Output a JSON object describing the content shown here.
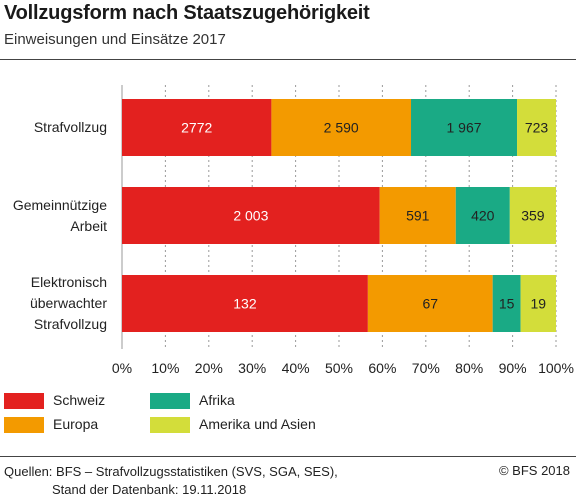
{
  "title": "Vollzugsform nach Staatszugehörigkeit",
  "subtitle": "Einweisungen und Einsätze 2017",
  "source_line1": "Quellen: BFS – Strafvollzugsstatistiken (SVS, SGA, SES),",
  "source_line2": "Stand der Datenbank: 19.11.2018",
  "copyright": "© BFS 2018",
  "chart_data": {
    "type": "bar",
    "orientation": "horizontal",
    "stacked": "percent",
    "categories": [
      "Strafvollzug",
      "Gemeinnützige Arbeit",
      "Elektronisch überwachter Strafvollzug"
    ],
    "category_lines": [
      [
        "Strafvollzug"
      ],
      [
        "Gemeinnützige",
        "Arbeit"
      ],
      [
        "Elektronisch",
        "überwachter",
        "Strafvollzug"
      ]
    ],
    "series": [
      {
        "name": "Schweiz",
        "color": "#e3211f",
        "values": [
          2772,
          2003,
          132
        ],
        "labels": [
          "2772",
          "2 003",
          "132"
        ]
      },
      {
        "name": "Europa",
        "color": "#f39a00",
        "values": [
          2590,
          591,
          67
        ],
        "labels": [
          "2 590",
          "591",
          "67"
        ]
      },
      {
        "name": "Afrika",
        "color": "#1aaa85",
        "values": [
          1967,
          420,
          15
        ],
        "labels": [
          "1 967",
          "420",
          "15"
        ]
      },
      {
        "name": "Amerika und Asien",
        "color": "#d3dd3a",
        "values": [
          723,
          359,
          19
        ],
        "labels": [
          "723",
          "359",
          "19"
        ]
      }
    ],
    "xticks": [
      "0%",
      "10%",
      "20%",
      "30%",
      "40%",
      "50%",
      "60%",
      "70%",
      "80%",
      "90%",
      "100%"
    ],
    "xlim": [
      0,
      100
    ],
    "grid": "vertical dashed",
    "legend_position": "bottom-left"
  }
}
